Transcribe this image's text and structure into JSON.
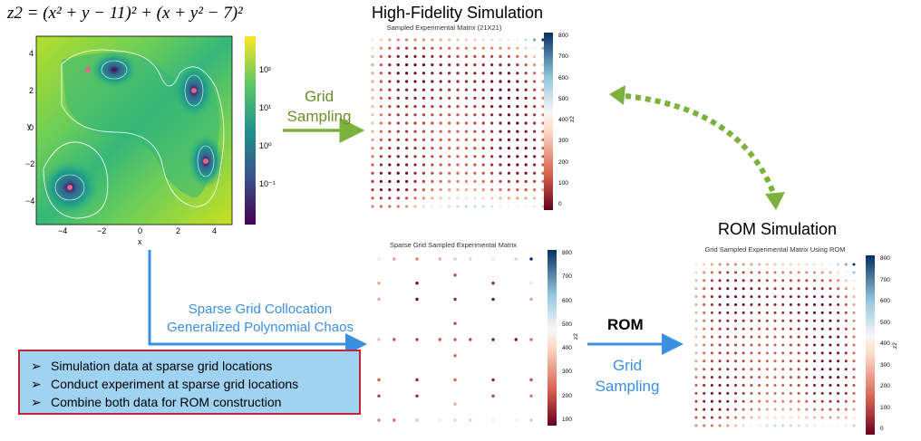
{
  "formula": "z2 = (x² + y − 11)² + (x + y² − 7)²",
  "contour_plot": {
    "x_label": "x",
    "y_label": "y",
    "x_ticks": [
      "−4",
      "−2",
      "0",
      "2",
      "4"
    ],
    "y_ticks": [
      "4",
      "2",
      "0",
      "−2",
      "−4"
    ],
    "colorbar_ticks": [
      "10²",
      "10¹",
      "10⁰",
      "10⁻¹"
    ]
  },
  "titles": {
    "high_fidelity": "High-Fidelity Simulation",
    "rom_simulation": "ROM Simulation"
  },
  "plots": {
    "high_fidelity": {
      "title": "Sampled Experimental Matrix (21X21)",
      "colorbar_ticks": [
        "800",
        "700",
        "600",
        "500",
        "400",
        "300",
        "200",
        "100",
        "0"
      ],
      "colorbar_label": "z2"
    },
    "sparse": {
      "title": "Sparse Grid Sampled Experimental Matrix",
      "colorbar_ticks": [
        "800",
        "700",
        "600",
        "500",
        "400",
        "300",
        "200",
        "100"
      ],
      "colorbar_label": "z2"
    },
    "rom": {
      "title": "Grid Sampled Experimental Matrix Using ROM",
      "colorbar_ticks": [
        "800",
        "700",
        "600",
        "500",
        "400",
        "300",
        "200",
        "100",
        "0"
      ],
      "colorbar_label": "z2"
    }
  },
  "labels": {
    "grid_sampling_1": [
      "Grid",
      "Sampling"
    ],
    "sparse": [
      "Sparse Grid Collocation",
      "Generalized Polynomial Chaos"
    ],
    "rom": "ROM",
    "grid_sampling_2": [
      "Grid",
      "Sampling"
    ]
  },
  "bullets": [
    "Simulation data at sparse grid locations",
    "Conduct experiment at sparse grid locations",
    "Combine both data for ROM construction"
  ],
  "bullet_marker": "➢",
  "colors": {
    "green": "#7ab23b",
    "blue": "#3a8fe0",
    "box_fill": "#9fd3f1",
    "box_border": "#c0243a"
  }
}
